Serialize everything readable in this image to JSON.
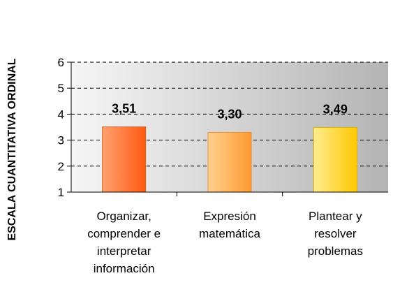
{
  "chart_data": {
    "type": "bar",
    "ylabel": "ESCALA CUANTITATIVA ORDINAL",
    "categories": [
      [
        "Organizar,",
        "comprender e",
        "interpretar",
        "información"
      ],
      [
        "Expresión",
        "matemática"
      ],
      [
        "Plantear y",
        "resolver",
        "problemas"
      ]
    ],
    "values": [
      3.51,
      3.3,
      3.49
    ],
    "value_labels": [
      "3,51",
      "3,30",
      "3,49"
    ],
    "ylim": [
      1,
      6
    ],
    "yticks": [
      "1",
      "2",
      "3",
      "4",
      "5",
      "6"
    ],
    "grid": true,
    "legend": "none",
    "colors": {
      "bars": [
        [
          "#ffa070",
          "#ff5a10"
        ],
        [
          "#ffd090",
          "#ff9a30"
        ],
        [
          "#ffec90",
          "#ffc800"
        ]
      ],
      "bar_border": [
        "#e06020",
        "#e89030",
        "#e0b000"
      ],
      "plot_bg_start": "#f6f6f6",
      "plot_bg_end": "#b4b4b4"
    }
  }
}
